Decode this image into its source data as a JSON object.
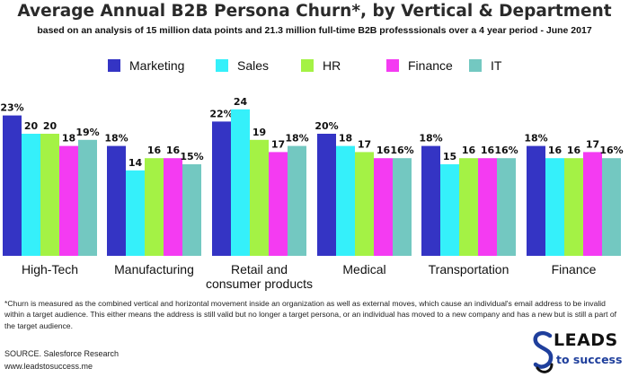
{
  "header": {
    "title": "Average Annual B2B Persona Churn*, by Vertical & Department",
    "subtitle": "based on an analysis of 15 million data points and 21.3 million full-time B2B professsionals over a 4 year period  - June 2017"
  },
  "chart_data": {
    "type": "bar",
    "categories": [
      [
        "High-Tech"
      ],
      [
        "Manufacturing"
      ],
      [
        "Retail and",
        "consumer products"
      ],
      [
        "Medical"
      ],
      [
        "Transportation"
      ],
      [
        "Finance"
      ]
    ],
    "series": [
      {
        "name": "Marketing",
        "color": "#3434c4",
        "values": [
          23,
          18,
          22,
          20,
          18,
          18
        ],
        "labels": [
          "23%",
          "18%",
          "22%",
          "20%",
          "18%",
          "18%"
        ]
      },
      {
        "name": "Sales",
        "color": "#35f0fa",
        "values": [
          20,
          14,
          24,
          18,
          15,
          16
        ],
        "labels": [
          "20",
          "14",
          "24",
          "18",
          "15",
          "16"
        ]
      },
      {
        "name": "HR",
        "color": "#a4f245",
        "values": [
          20,
          16,
          19,
          17,
          16,
          16
        ],
        "labels": [
          "20",
          "16",
          "19",
          "17",
          "16",
          "16"
        ]
      },
      {
        "name": "Finance",
        "color": "#f43bf2",
        "values": [
          18,
          16,
          17,
          16,
          16,
          17
        ],
        "labels": [
          "18",
          "16",
          "17",
          "16",
          "16",
          "17"
        ]
      },
      {
        "name": "IT",
        "color": "#73c8c1",
        "values": [
          19,
          15,
          18,
          16,
          16,
          16
        ],
        "labels": [
          "19%",
          "15%",
          "18%",
          "16%",
          "16%",
          "16%"
        ]
      }
    ],
    "ylim": [
      0,
      25
    ],
    "legend": "top-center",
    "grid": false
  },
  "footnote": "*Churn is measured as the combined vertical and horizontal movement inside an organization as well as external moves, which cause an individual's email address to be invalid within a target audience. This either means the address is still valid but no longer a target persona, or an individual has moved to a new company and has a new but is still a part of the target audience.",
  "source": {
    "line1": "SOURCE. Salesforce Research",
    "line2": "www.leadstosuccess.me"
  },
  "logo": {
    "line1": "LEADS",
    "line2": "to success"
  }
}
